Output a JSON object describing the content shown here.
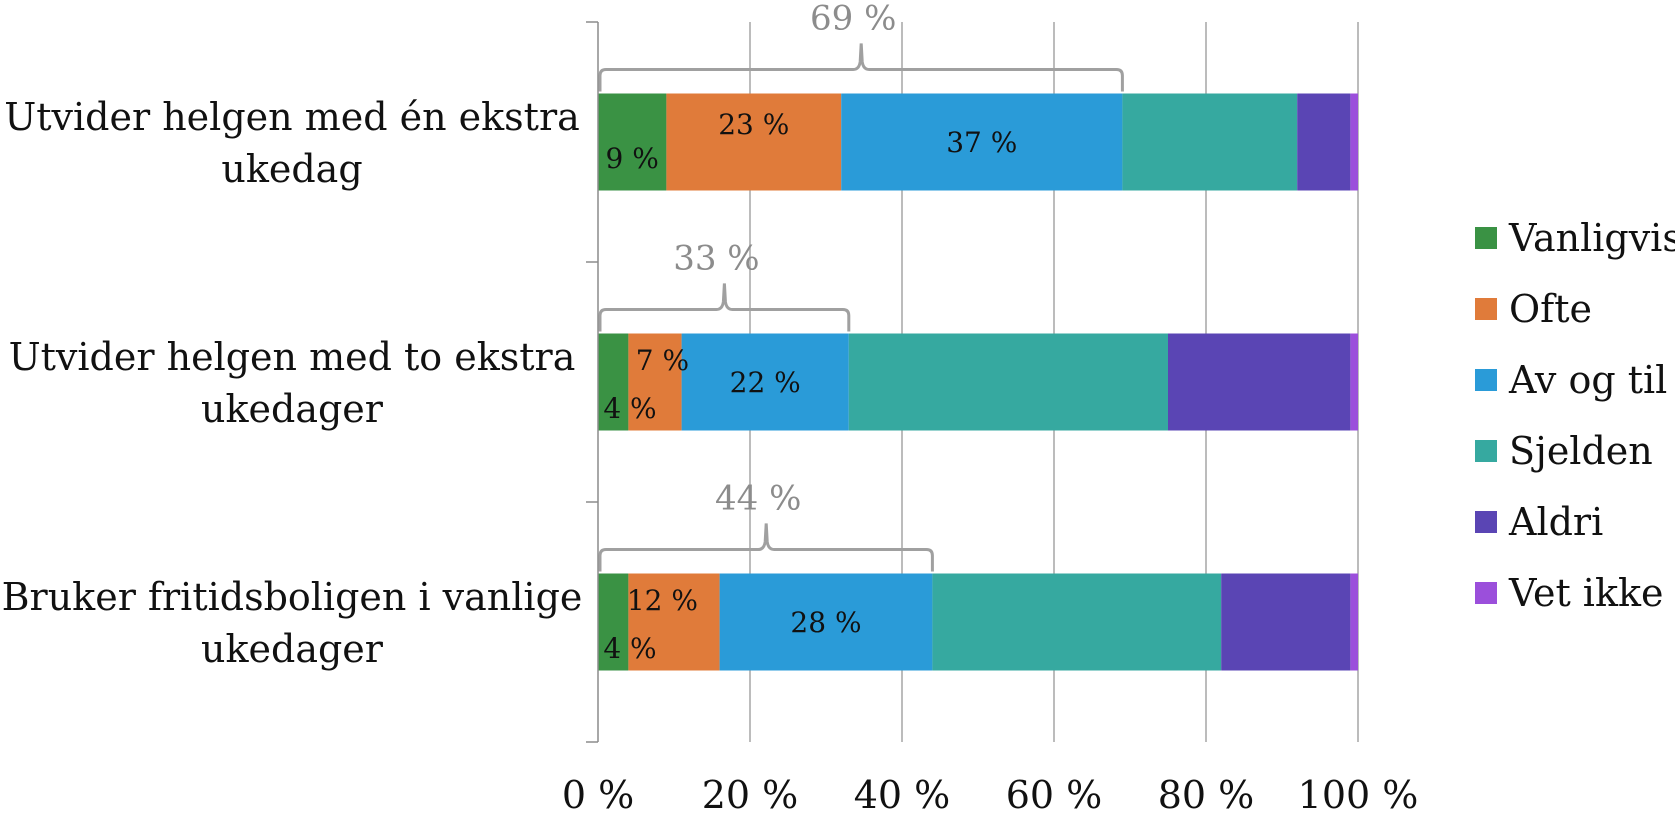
{
  "chart_data": {
    "type": "bar",
    "orientation": "horizontal",
    "stacked": true,
    "categories": [
      "Utvider helgen med én ekstra ukedag",
      "Utvider helgen med to ekstra ukedager",
      "Bruker fritidsboligen i vanlige ukedager"
    ],
    "category_lines": [
      [
        "Utvider helgen med én ekstra",
        "ukedag"
      ],
      [
        "Utvider helgen med to ekstra",
        "ukedager"
      ],
      [
        "Bruker fritidsboligen i vanlige",
        "ukedager"
      ]
    ],
    "series": [
      {
        "name": "Vanligvis",
        "color": "#3a9244",
        "values": [
          9,
          4,
          4
        ],
        "labels": [
          "9 %",
          "4 %",
          "4 %"
        ]
      },
      {
        "name": "Ofte",
        "color": "#e07b3a",
        "values": [
          23,
          7,
          12
        ],
        "labels": [
          "23 %",
          "7 %",
          "12 %"
        ]
      },
      {
        "name": "Av og til",
        "color": "#2a9bd8",
        "values": [
          37,
          22,
          28
        ],
        "labels": [
          "37 %",
          "22 %",
          "28 %"
        ]
      },
      {
        "name": "Sjelden",
        "color": "#36a9a0",
        "values": [
          23,
          42,
          38
        ],
        "labels": [
          "",
          "",
          ""
        ]
      },
      {
        "name": "Aldri",
        "color": "#5a45b4",
        "values": [
          7,
          24,
          17
        ],
        "labels": [
          "",
          "",
          ""
        ]
      },
      {
        "name": "Vet ikke",
        "color": "#9b4fdb",
        "values": [
          1,
          1,
          1
        ],
        "labels": [
          "",
          "",
          ""
        ]
      }
    ],
    "brackets": [
      {
        "category": 0,
        "value": 69,
        "label": "69 %"
      },
      {
        "category": 1,
        "value": 33,
        "label": "33 %"
      },
      {
        "category": 2,
        "value": 44,
        "label": "44 %"
      }
    ],
    "xlim": [
      0,
      100
    ],
    "xticks": [
      0,
      20,
      40,
      60,
      80,
      100
    ],
    "xtick_labels": [
      "0 %",
      "20 %",
      "40 %",
      "60 %",
      "80 %",
      "100 %"
    ],
    "grid": true,
    "legend_position": "right",
    "title": "",
    "xlabel": "",
    "ylabel": ""
  }
}
